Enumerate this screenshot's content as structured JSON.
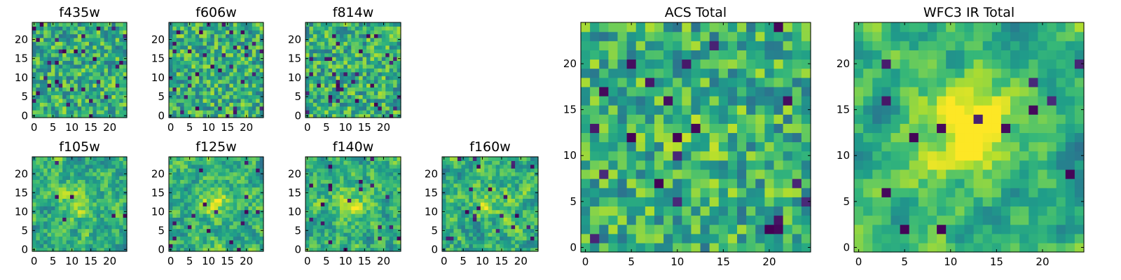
{
  "figure": {
    "background": "#ffffff"
  },
  "chart_data": [
    {
      "type": "heatmap",
      "title": "f435w",
      "grid_size": 25,
      "xlim": [
        0,
        24
      ],
      "ylim": [
        0,
        24
      ],
      "x_ticks": [
        "0",
        "5",
        "10",
        "15",
        "20"
      ],
      "y_ticks": [
        "0",
        "5",
        "10",
        "15",
        "20"
      ],
      "colormap": "viridis",
      "seed": 11,
      "smooth": 0,
      "blob": 0,
      "dark": 0.05
    },
    {
      "type": "heatmap",
      "title": "f606w",
      "grid_size": 25,
      "xlim": [
        0,
        24
      ],
      "ylim": [
        0,
        24
      ],
      "x_ticks": [
        "0",
        "5",
        "10",
        "15",
        "20"
      ],
      "y_ticks": [
        "0",
        "5",
        "10",
        "15",
        "20"
      ],
      "colormap": "viridis",
      "seed": 23,
      "smooth": 0,
      "blob": 0,
      "dark": 0.05
    },
    {
      "type": "heatmap",
      "title": "f814w",
      "grid_size": 25,
      "xlim": [
        0,
        24
      ],
      "ylim": [
        0,
        24
      ],
      "x_ticks": [
        "0",
        "5",
        "10",
        "15",
        "20"
      ],
      "y_ticks": [
        "0",
        "5",
        "10",
        "15",
        "20"
      ],
      "colormap": "viridis",
      "seed": 37,
      "smooth": 0,
      "blob": 0,
      "dark": 0.05
    },
    {
      "type": "heatmap",
      "title": "f105w",
      "grid_size": 25,
      "xlim": [
        0,
        24
      ],
      "ylim": [
        0,
        24
      ],
      "x_ticks": [
        "0",
        "5",
        "10",
        "15",
        "20"
      ],
      "y_ticks": [
        "0",
        "5",
        "10",
        "15",
        "20"
      ],
      "colormap": "viridis",
      "seed": 41,
      "smooth": 1,
      "blob": 0.25,
      "dark": 0.02
    },
    {
      "type": "heatmap",
      "title": "f125w",
      "grid_size": 25,
      "xlim": [
        0,
        24
      ],
      "ylim": [
        0,
        24
      ],
      "x_ticks": [
        "0",
        "5",
        "10",
        "15",
        "20"
      ],
      "y_ticks": [
        "0",
        "5",
        "10",
        "15",
        "20"
      ],
      "colormap": "viridis",
      "seed": 53,
      "smooth": 1,
      "blob": 0.2,
      "dark": 0.02
    },
    {
      "type": "heatmap",
      "title": "f140w",
      "grid_size": 25,
      "xlim": [
        0,
        24
      ],
      "ylim": [
        0,
        24
      ],
      "x_ticks": [
        "0",
        "5",
        "10",
        "15",
        "20"
      ],
      "y_ticks": [
        "0",
        "5",
        "10",
        "15",
        "20"
      ],
      "colormap": "viridis",
      "seed": 67,
      "smooth": 1,
      "blob": 0.2,
      "dark": 0.02
    },
    {
      "type": "heatmap",
      "title": "f160w",
      "grid_size": 25,
      "xlim": [
        0,
        24
      ],
      "ylim": [
        0,
        24
      ],
      "x_ticks": [
        "0",
        "5",
        "10",
        "15",
        "20"
      ],
      "y_ticks": [
        "0",
        "5",
        "10",
        "15",
        "20"
      ],
      "colormap": "viridis",
      "seed": 79,
      "smooth": 1,
      "blob": 0.2,
      "dark": 0.03
    },
    {
      "type": "heatmap",
      "title": "ACS Total",
      "grid_size": 25,
      "xlim": [
        0,
        24
      ],
      "ylim": [
        0,
        24
      ],
      "x_ticks": [
        "0",
        "5",
        "10",
        "15",
        "20"
      ],
      "y_ticks": [
        "0",
        "5",
        "10",
        "15",
        "20"
      ],
      "colormap": "viridis",
      "seed": 97,
      "smooth": 0,
      "blob": 0.1,
      "dark": 0.04
    },
    {
      "type": "heatmap",
      "title": "WFC3 IR Total",
      "grid_size": 25,
      "xlim": [
        0,
        24
      ],
      "ylim": [
        0,
        24
      ],
      "x_ticks": [
        "0",
        "5",
        "10",
        "15",
        "20"
      ],
      "y_ticks": [
        "0",
        "5",
        "10",
        "15",
        "20"
      ],
      "colormap": "viridis",
      "seed": 113,
      "smooth": 2,
      "blob": 0.55,
      "dark": 0.03
    }
  ]
}
